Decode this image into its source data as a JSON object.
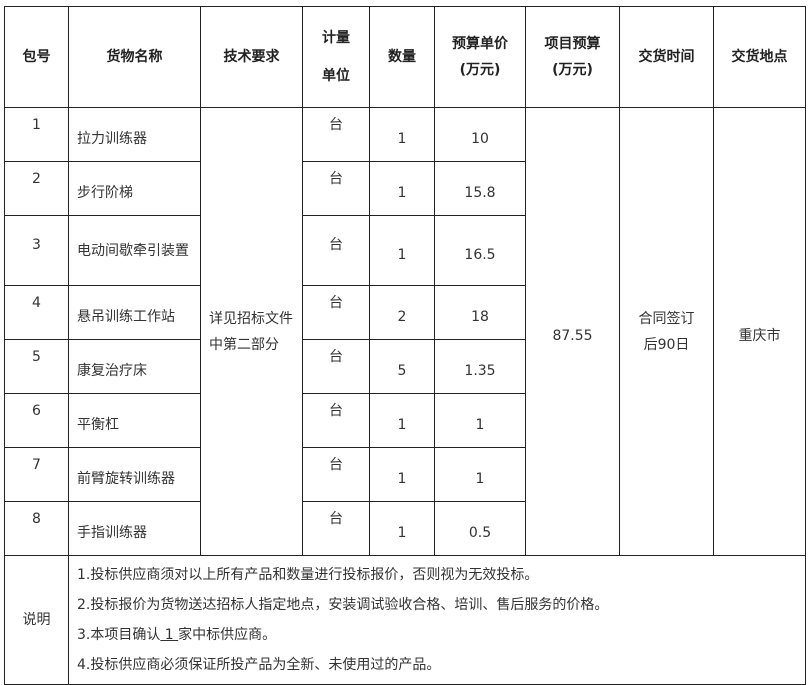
{
  "headers": {
    "package_no": "包号",
    "goods_name": "货物名称",
    "tech_req": "技术要求",
    "unit_line1": "计量",
    "unit_line2": "单位",
    "quantity": "数量",
    "unit_price_line1": "预算单价",
    "unit_price_line2": "(万元)",
    "project_budget_line1": "项目预算",
    "project_budget_line2": "(万元)",
    "delivery_time": "交货时间",
    "delivery_place": "交货地点"
  },
  "rows": [
    {
      "no": "1",
      "name": "拉力训练器",
      "unit": "台",
      "qty": "1",
      "price": "10"
    },
    {
      "no": "2",
      "name": "步行阶梯",
      "unit": "台",
      "qty": "1",
      "price": "15.8"
    },
    {
      "no": "3",
      "name": "电动间歇牵引装置",
      "unit": "台",
      "qty": "1",
      "price": "16.5"
    },
    {
      "no": "4",
      "name": "悬吊训练工作站",
      "unit": "台",
      "qty": "2",
      "price": "18"
    },
    {
      "no": "5",
      "name": "康复治疗床",
      "unit": "台",
      "qty": "5",
      "price": "1.35"
    },
    {
      "no": "6",
      "name": "平衡杠",
      "unit": "台",
      "qty": "1",
      "price": "1"
    },
    {
      "no": "7",
      "name": "前臂旋转训练器",
      "unit": "台",
      "qty": "1",
      "price": "1"
    },
    {
      "no": "8",
      "name": "手指训练器",
      "unit": "台",
      "qty": "1",
      "price": "0.5"
    }
  ],
  "merged": {
    "tech_req": "详见招标文件中第二部分",
    "project_budget": "87.55",
    "delivery_time": "合同签订后90日",
    "delivery_place": "重庆市"
  },
  "notes": {
    "label": "说明",
    "line1": "1.投标供应商须对以上所有产品和数量进行投标报价，否则视为无效投标。",
    "line2": "2.投标报价为货物送达招标人指定地点，安装调试验收合格、培训、售后服务的价格。",
    "line3_pre": "3.本项目确认",
    "line3_num": " 1 ",
    "line3_post": "家中标供应商。",
    "line4": "4.投标供应商必须保证所投产品为全新、未使用过的产品。"
  }
}
